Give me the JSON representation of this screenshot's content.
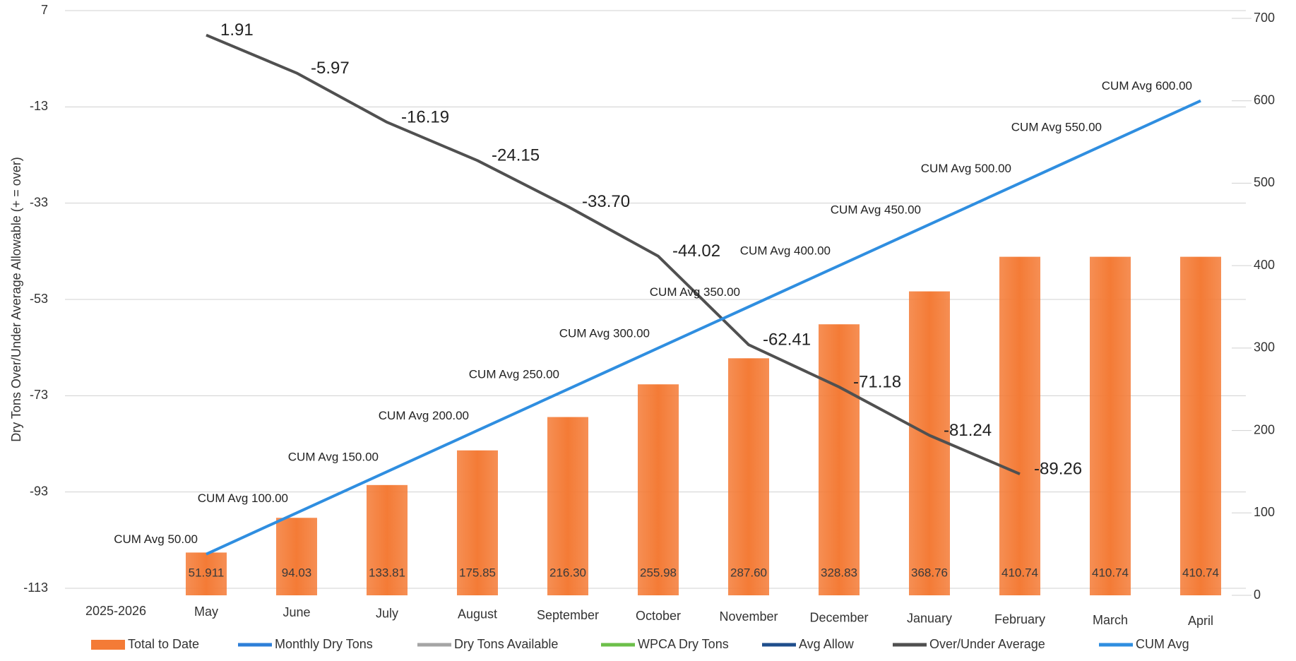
{
  "chart_data": {
    "type": "bar",
    "y_label": "Dry Tons Over/Under Average Allowable (+ = over)",
    "categories": [
      "2025-2026",
      "May",
      "June",
      "July",
      "August",
      "September",
      "October",
      "November",
      "December",
      "January",
      "February",
      "March",
      "April"
    ],
    "ylim": [
      -113,
      7
    ],
    "yticks": [
      -113,
      -93,
      -73,
      -53,
      -33,
      -13,
      7
    ],
    "y2lim": [
      0,
      700
    ],
    "y2ticks": [
      0,
      100,
      200,
      300,
      400,
      500,
      600,
      700
    ],
    "grid": true,
    "legend": "bottom",
    "series": [
      {
        "name": "Total to Date",
        "type": "bar",
        "axis": "y2",
        "color": "#f47b36",
        "values": [
          null,
          51.911,
          94.03,
          133.81,
          175.85,
          216.3,
          255.98,
          287.6,
          328.83,
          368.76,
          410.74,
          410.74,
          410.74
        ],
        "value_labels": [
          null,
          "51.911",
          "94.03",
          "133.81",
          "175.85",
          "216.30",
          "255.98",
          "287.60",
          "328.83",
          "368.76",
          "410.74",
          "410.74",
          "410.74"
        ]
      },
      {
        "name": "Monthly Dry Tons",
        "type": "line",
        "axis": "y2",
        "color": "#2e7fd8",
        "values": [
          null,
          null,
          null,
          null,
          null,
          null,
          null,
          null,
          null,
          null,
          null,
          null,
          null
        ]
      },
      {
        "name": "Dry Tons Available",
        "type": "line",
        "axis": "y2",
        "color": "#a5a5a5",
        "values": [
          null,
          null,
          null,
          null,
          null,
          null,
          null,
          null,
          null,
          null,
          null,
          null,
          null
        ]
      },
      {
        "name": "WPCA Dry Tons",
        "type": "line",
        "axis": "y2",
        "color": "#6cbf4a",
        "values": [
          null,
          null,
          null,
          null,
          null,
          null,
          null,
          null,
          null,
          null,
          null,
          null,
          null
        ]
      },
      {
        "name": "Avg Allow",
        "type": "line",
        "axis": "y2",
        "color": "#1f4e8c",
        "values": [
          null,
          null,
          null,
          null,
          null,
          null,
          null,
          null,
          null,
          null,
          null,
          null,
          null
        ]
      },
      {
        "name": "Over/Under Average",
        "type": "line",
        "color": "#505050",
        "values": [
          null,
          1.91,
          -5.97,
          -16.19,
          -24.15,
          -33.7,
          -44.02,
          -62.41,
          -71.18,
          -81.24,
          -89.26,
          null,
          null
        ],
        "value_labels": [
          null,
          "1.91",
          "-5.97",
          "-16.19",
          "-24.15",
          "-33.70",
          "-44.02",
          "-62.41",
          "-71.18",
          "-81.24",
          "-89.26",
          null,
          null
        ]
      },
      {
        "name": "CUM Avg",
        "type": "line",
        "axis": "y2",
        "color": "#2f8ee0",
        "values": [
          null,
          50,
          100,
          150,
          200,
          250,
          300,
          350,
          400,
          450,
          500,
          550,
          600
        ],
        "value_labels": [
          null,
          "CUM Avg 50.00",
          "CUM Avg 100.00",
          "CUM Avg 150.00",
          "CUM Avg 200.00",
          "CUM Avg 250.00",
          "CUM Avg 300.00",
          "CUM Avg 350.00",
          "CUM Avg 400.00",
          "CUM Avg 450.00",
          "CUM Avg 500.00",
          "CUM Avg 550.00",
          "CUM Avg 600.00"
        ]
      }
    ]
  }
}
